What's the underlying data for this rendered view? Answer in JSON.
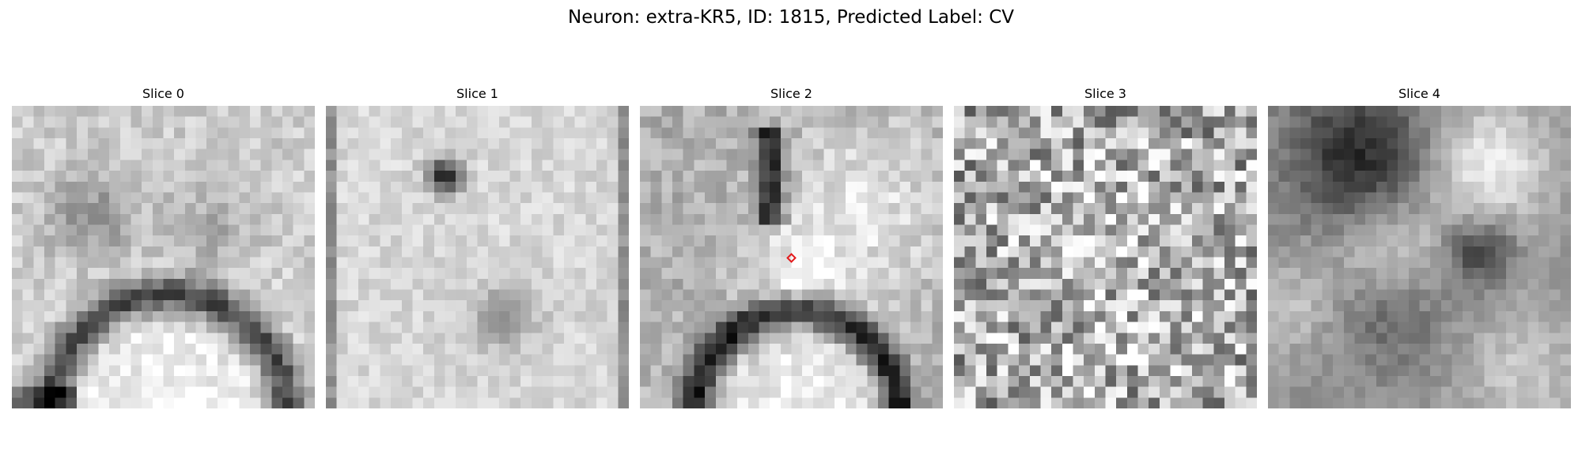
{
  "figure": {
    "title": "Neuron: extra-KR5, ID: 1815, Predicted Label: CV",
    "marker_color": "#e31a1c"
  },
  "slices": [
    {
      "title": "Slice 0",
      "style": "membrane"
    },
    {
      "title": "Slice 1",
      "style": "pale"
    },
    {
      "title": "Slice 2",
      "style": "membrane-sharp",
      "marker": true
    },
    {
      "title": "Slice 3",
      "style": "noise"
    },
    {
      "title": "Slice 4",
      "style": "blurry"
    }
  ]
}
